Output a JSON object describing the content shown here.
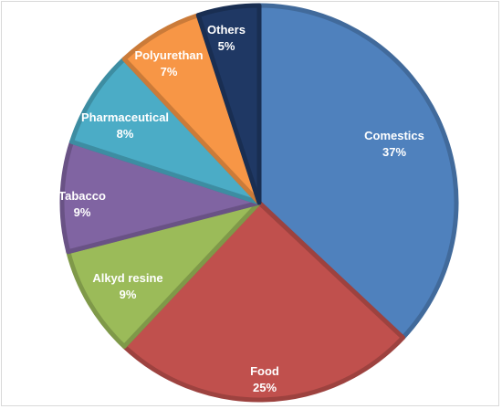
{
  "chart_data": {
    "type": "pie",
    "title": "",
    "slices": [
      {
        "label": "Comestics",
        "value": 37,
        "value_label": "37%",
        "color": "#4f81bd"
      },
      {
        "label": "Food",
        "value": 25,
        "value_label": "25%",
        "color": "#c0504d"
      },
      {
        "label": "Alkyd resine",
        "value": 9,
        "value_label": "9%",
        "color": "#9bbb59"
      },
      {
        "label": "Tabacco",
        "value": 9,
        "value_label": "9%",
        "color": "#8064a2"
      },
      {
        "label": "Pharmaceutical",
        "value": 8,
        "value_label": "8%",
        "color": "#4bacc6"
      },
      {
        "label": "Polyurethan",
        "value": 7,
        "value_label": "7%",
        "color": "#f79646"
      },
      {
        "label": "Others",
        "value": 5,
        "value_label": "5%",
        "color": "#1f3864"
      }
    ],
    "start": "12 o'clock",
    "direction": "clockwise",
    "legend": "none",
    "labels": "inside slices"
  }
}
